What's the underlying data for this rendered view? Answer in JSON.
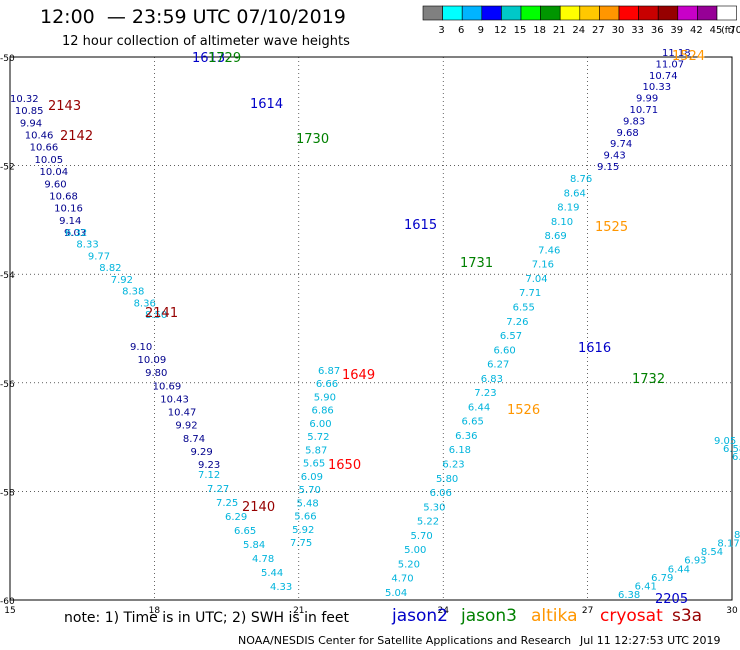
{
  "header": {
    "title": "12:00  — 23:59 UTC 07/10/2019",
    "subtitle": "12 hour collection of altimeter wave heights"
  },
  "colorbar": {
    "unit": "(ft)",
    "ticks": [
      "3",
      "6",
      "9",
      "12",
      "15",
      "18",
      "21",
      "24",
      "27",
      "30",
      "33",
      "36",
      "39",
      "42",
      "45",
      "70"
    ],
    "colors": [
      "#808080",
      "#00ffff",
      "#00b4ff",
      "#0000ff",
      "#00c8c8",
      "#00ff00",
      "#009600",
      "#ffff00",
      "#ffc800",
      "#ff9600",
      "#ff0000",
      "#c80000",
      "#960000",
      "#c800c8",
      "#960096",
      "#ffffff"
    ]
  },
  "map": {
    "lat_labels": [
      "-50",
      "-52",
      "-54",
      "-56",
      "-58",
      "-60"
    ],
    "lon_labels": [
      "15",
      "18",
      "21",
      "24",
      "27",
      "30"
    ],
    "grid": "dotted"
  },
  "satellite_colors": {
    "jason2": "#0000c8",
    "jason3": "#008000",
    "altika": "#ff9600",
    "cryosat": "#ff0000",
    "s3a": "#960000",
    "value_light": "#00b4dc",
    "value_dark": "#0000a0"
  },
  "tracks": [
    {
      "id": "t1",
      "color": "#00008c",
      "values": [
        "10.32",
        "10.85",
        "9.94",
        "10.46",
        "10.66",
        "10.05",
        "10.04",
        "9.60",
        "10.68",
        "10.16",
        "9.14",
        "9.03"
      ]
    },
    {
      "id": "t1b",
      "color": "#00b4dc",
      "values": [
        "6.32",
        "8.33",
        "9.77",
        "8.82",
        "7.92",
        "8.38",
        "8.36",
        "8.50"
      ]
    },
    {
      "id": "t1c",
      "color": "#00008c",
      "values": [
        "9.10",
        "10.09",
        "9.80",
        "10.69",
        "10.43",
        "10.47",
        "9.92",
        "8.74",
        "9.29",
        "9.23"
      ]
    },
    {
      "id": "t1d",
      "color": "#00b4dc",
      "values": [
        "7.12",
        "7.27",
        "7.25",
        "6.29",
        "6.65",
        "5.84",
        "4.78",
        "5.44",
        "4.33"
      ]
    },
    {
      "id": "t2",
      "color": "#00b4dc",
      "values": [
        "6.87",
        "6.66",
        "5.90",
        "6.86",
        "6.00",
        "5.72",
        "5.87",
        "5.65",
        "6.09",
        "5.70",
        "5.48",
        "5.66",
        "5.92",
        "7.75"
      ]
    },
    {
      "id": "t3",
      "color": "#00b4dc",
      "values": [
        "5.04",
        "4.70",
        "5.20",
        "5.00",
        "5.70",
        "5.22",
        "5.30",
        "6.06",
        "5.80",
        "6.23",
        "6.18",
        "6.36",
        "6.65",
        "6.44",
        "7.23",
        "6.83",
        "6.27",
        "6.60",
        "6.57",
        "7.26",
        "6.55",
        "7.71",
        "7.04",
        "7.16",
        "7.46",
        "8.69",
        "8.10",
        "8.19",
        "8.64",
        "8.76"
      ]
    },
    {
      "id": "t4",
      "color": "#0000a0",
      "values": [
        "9.15",
        "9.43",
        "9.74",
        "9.68",
        "9.83",
        "10.71",
        "9.99",
        "10.33",
        "10.74",
        "11.07",
        "11.18"
      ]
    },
    {
      "id": "t5",
      "color": "#00b4dc",
      "values": [
        "6.38",
        "6.41",
        "6.79",
        "6.44",
        "6.93",
        "8.54",
        "8.17",
        "8.6"
      ]
    },
    {
      "id": "t6",
      "color": "#00b4dc",
      "values": [
        "9.05",
        "6.58",
        "6.68"
      ]
    }
  ],
  "track_labels": [
    {
      "text": "2143",
      "sat": "s3a"
    },
    {
      "text": "2142",
      "sat": "s3a"
    },
    {
      "text": "2141",
      "sat": "s3a"
    },
    {
      "text": "2140",
      "sat": "s3a"
    },
    {
      "text": "1613",
      "sat": "jason2"
    },
    {
      "text": "1729",
      "sat": "jason3"
    },
    {
      "text": "1614",
      "sat": "jason2"
    },
    {
      "text": "1730",
      "sat": "jason3"
    },
    {
      "text": "1615",
      "sat": "jason2"
    },
    {
      "text": "1731",
      "sat": "jason3"
    },
    {
      "text": "1616",
      "sat": "jason2"
    },
    {
      "text": "1732",
      "sat": "jason3"
    },
    {
      "text": "1649",
      "sat": "cryosat"
    },
    {
      "text": "1650",
      "sat": "cryosat"
    },
    {
      "text": "1524",
      "sat": "altika"
    },
    {
      "text": "1525",
      "sat": "altika"
    },
    {
      "text": "1526",
      "sat": "altika"
    },
    {
      "text": "2205",
      "sat": "jason2"
    }
  ],
  "footer": {
    "note": "note:  1) Time is in UTC;  2) SWH is in feet",
    "sats": [
      "jason2",
      "jason3",
      "altika",
      "cryosat",
      "s3a"
    ],
    "credit": "NOAA/NESDIS Center for Satellite Applications and Research",
    "timestamp": "Jul 11 12:27:53 UTC 2019"
  }
}
